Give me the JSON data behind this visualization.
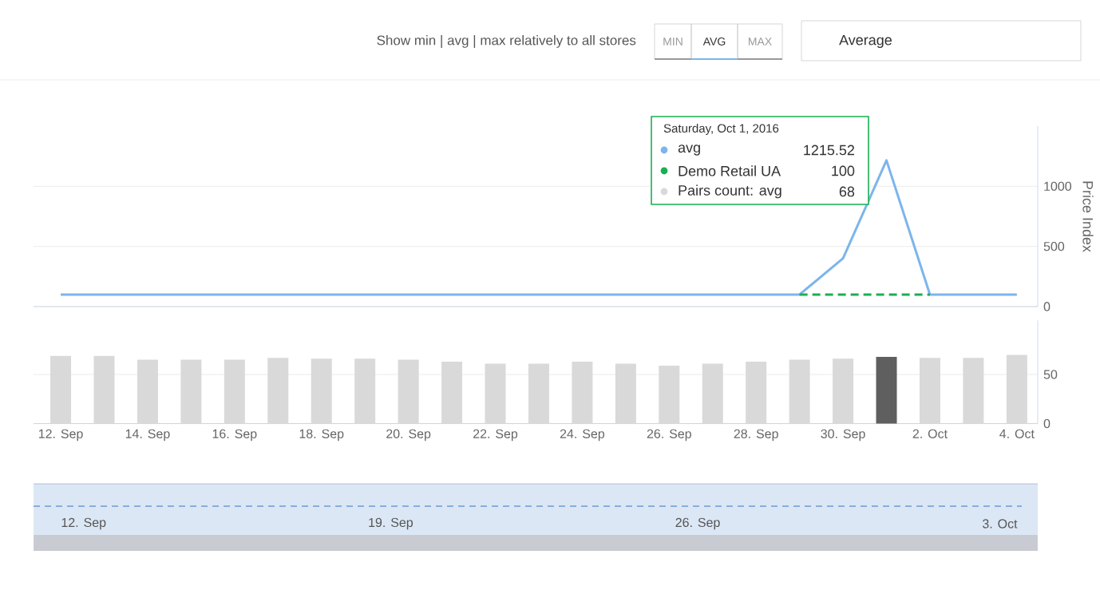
{
  "chart_data": [
    {
      "type": "line",
      "categories": [
        null,
        null,
        null,
        null,
        null,
        null,
        null,
        null,
        null,
        null,
        null,
        null,
        null,
        null,
        null,
        null,
        null,
        null,
        null,
        null,
        null,
        null,
        null
      ],
      "series": [
        {
          "name": "avg",
          "color": "#7cb5ec",
          "line_style": "solid",
          "values": [
            100,
            100,
            100,
            100,
            100,
            100,
            100,
            100,
            100,
            100,
            100,
            100,
            100,
            100,
            100,
            100,
            100,
            100,
            400,
            1215.52,
            100,
            100,
            100
          ]
        },
        {
          "name": "Demo Retail UA",
          "color": "#1aaf54",
          "line_style": "dashed",
          "values": [
            null,
            null,
            null,
            null,
            null,
            null,
            null,
            null,
            null,
            null,
            null,
            null,
            null,
            null,
            null,
            null,
            null,
            100,
            100,
            100,
            100,
            null,
            null
          ]
        }
      ],
      "ylim": [
        0,
        1500
      ],
      "yticks": [
        0,
        500,
        1000
      ],
      "ylabel": "Price Index",
      "grid": "y",
      "tick_labels": "y",
      "legend": "top right",
      "annotations": [
        "Saturday, Oct 1, 2016",
        "1215.52",
        "100",
        "68",
        "Show min | avg | max relatively to all stores",
        "MIN",
        "AVG",
        "MAX",
        "Average"
      ]
    },
    {
      "type": "bar",
      "categories": [
        "12. Sep",
        null,
        "14. Sep",
        null,
        "16. Sep",
        null,
        "18. Sep",
        null,
        "20. Sep",
        null,
        "22. Sep",
        null,
        "24. Sep",
        null,
        "26. Sep",
        null,
        "28. Sep",
        null,
        "30. Sep",
        null,
        "2. Oct",
        null,
        "4. Oct"
      ],
      "series": [
        {
          "name": "Pairs count: avg",
          "colors": [
            "#d9d9d9",
            "#d9d9d9",
            "#d9d9d9",
            "#d9d9d9",
            "#d9d9d9",
            "#d9d9d9",
            "#d9d9d9",
            "#d9d9d9",
            "#d9d9d9",
            "#d9d9d9",
            "#d9d9d9",
            "#d9d9d9",
            "#d9d9d9",
            "#d9d9d9",
            "#d9d9d9",
            "#d9d9d9",
            "#d9d9d9",
            "#d9d9d9",
            "#d9d9d9",
            "#5f5f5f",
            "#d9d9d9",
            "#d9d9d9",
            "#d9d9d9"
          ],
          "values": [
            69,
            69,
            65,
            65,
            65,
            67,
            66,
            66,
            65,
            63,
            61,
            61,
            63,
            61,
            59,
            61,
            63,
            65,
            66,
            68,
            67,
            67,
            70
          ]
        }
      ],
      "ylim": [
        0,
        105
      ],
      "yticks": [
        0,
        50
      ],
      "grid": "y"
    },
    {
      "type": "other",
      "annotations": [
        "12. Sep",
        "19. Sep",
        "26. Sep",
        "3. Oct"
      ]
    }
  ]
}
